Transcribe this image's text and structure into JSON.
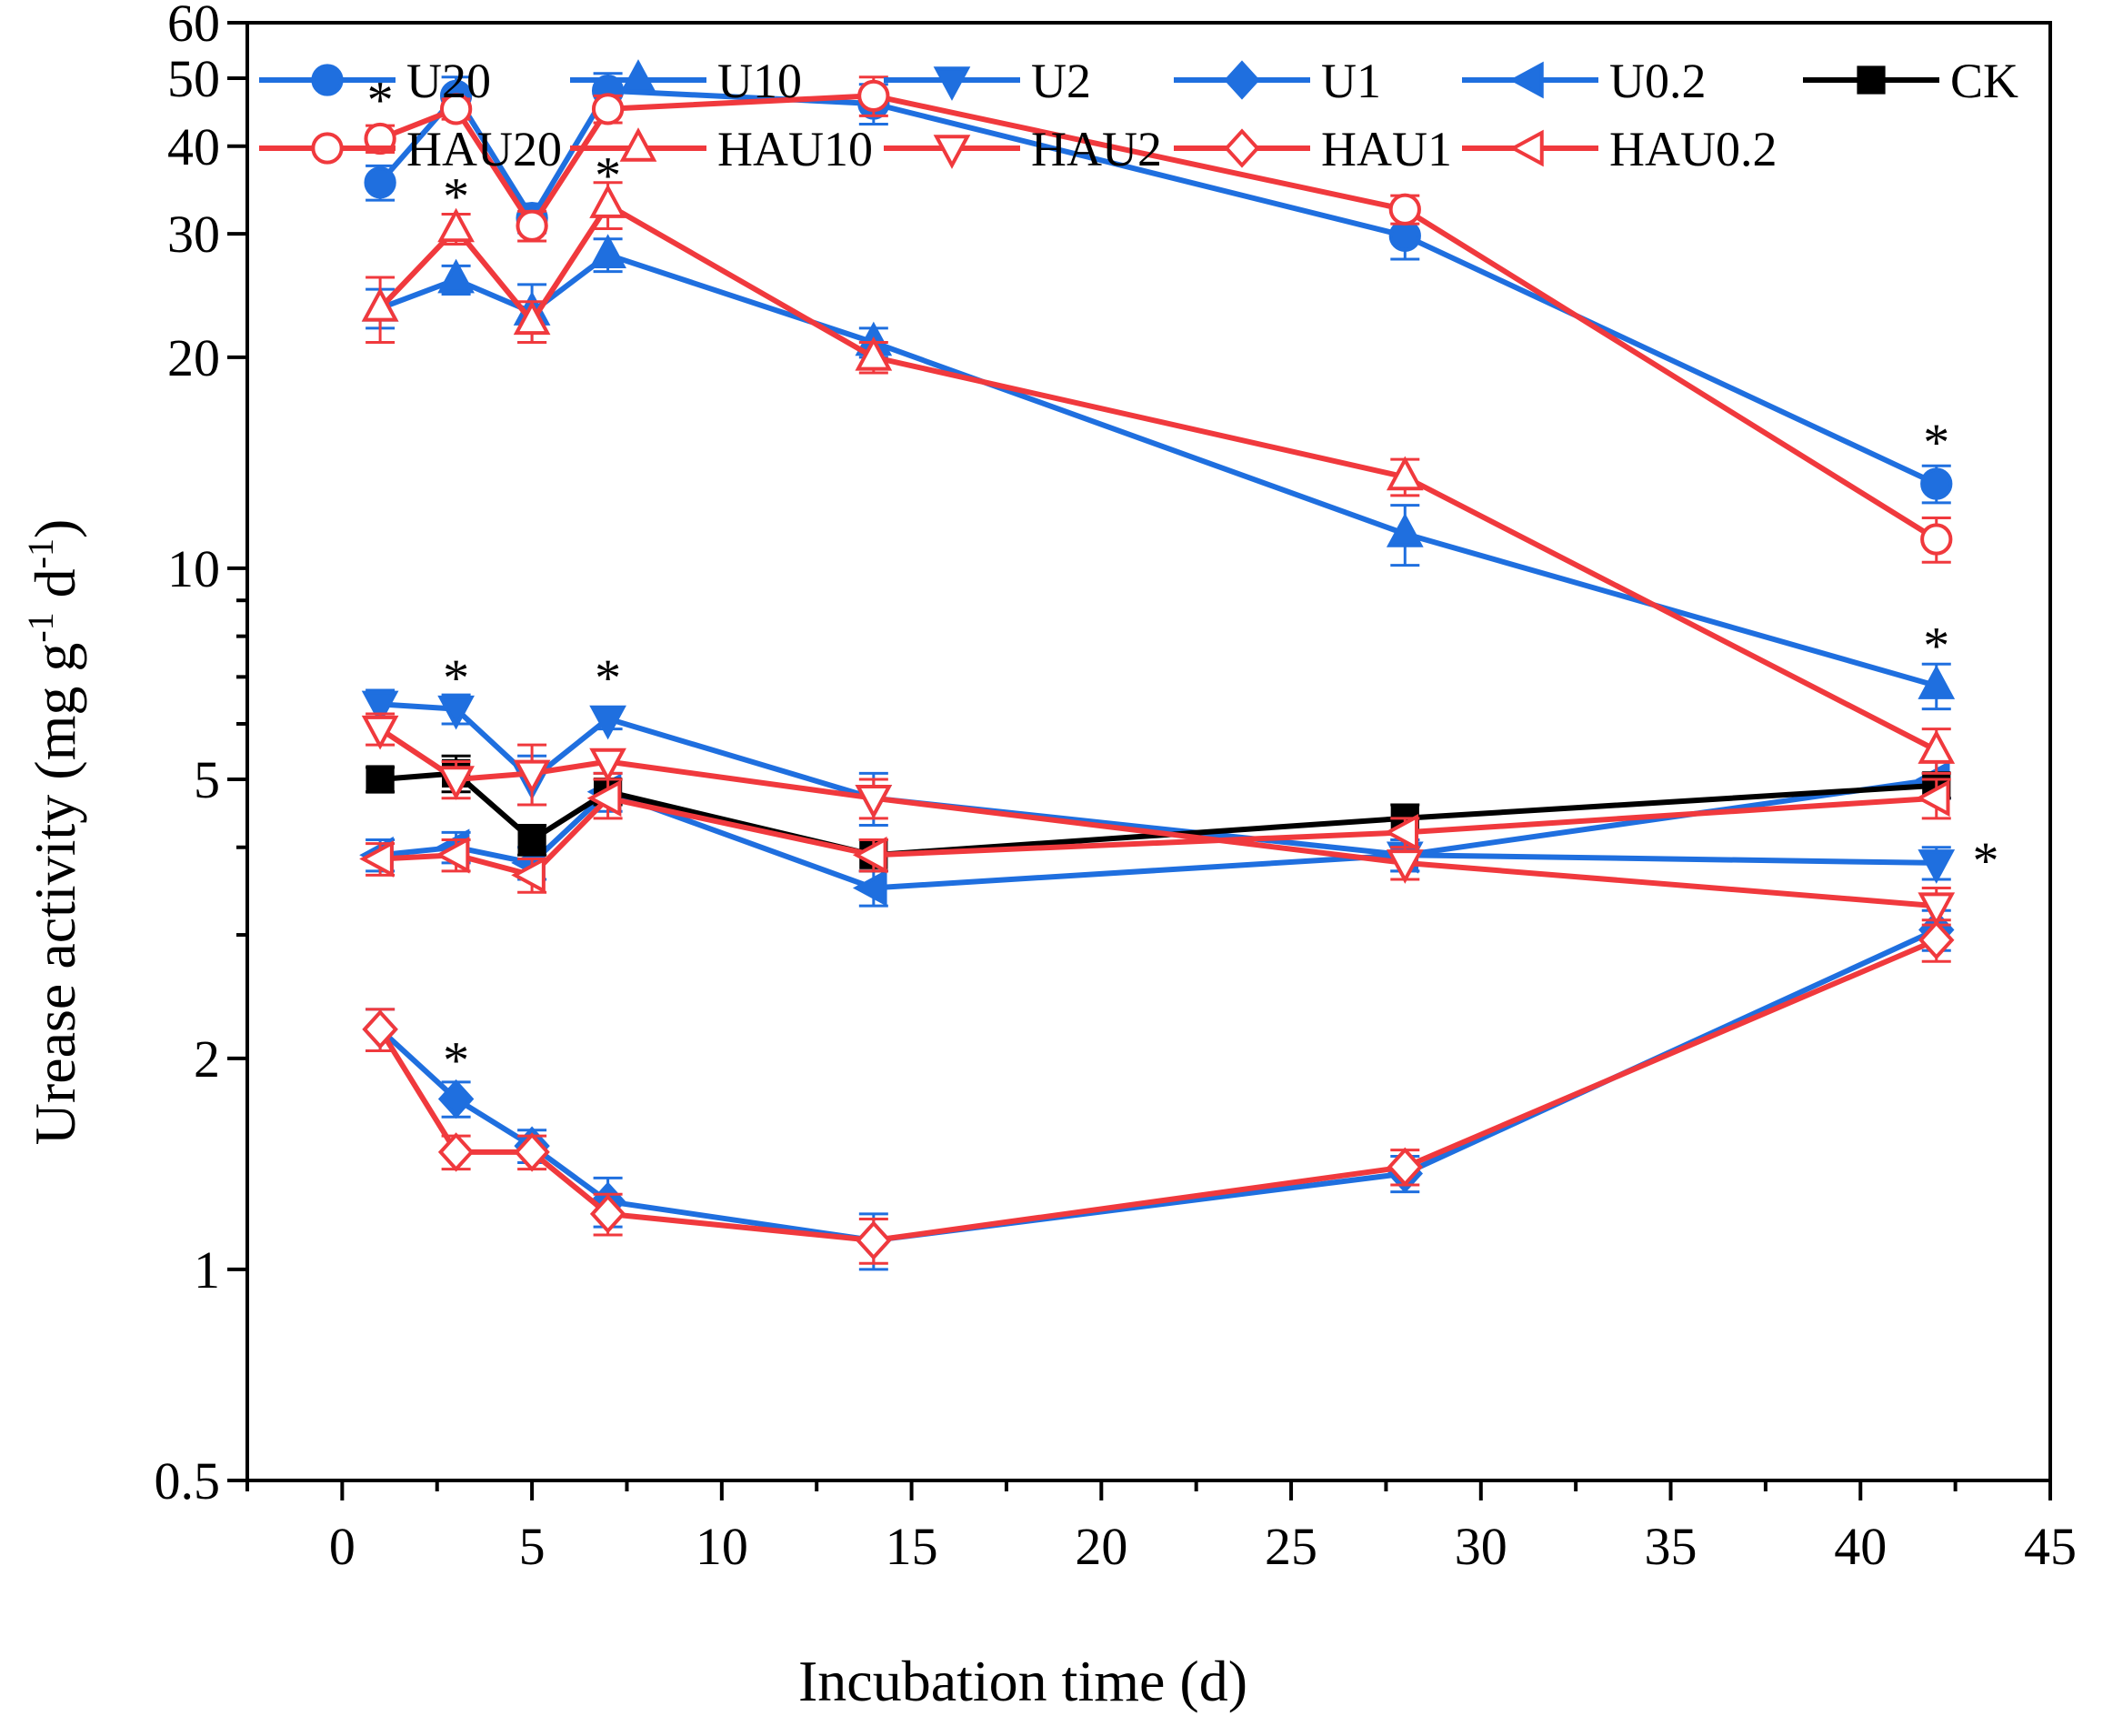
{
  "chart_data": {
    "type": "line",
    "xlabel": "Incubation time (d)",
    "ylabel": {
      "main": "Urease activity (mg g",
      "sup1": "-1",
      "mid": " d",
      "sup2": "-1",
      "end": ")"
    },
    "xlim": [
      -2.5,
      45
    ],
    "xticks": [
      0,
      5,
      10,
      15,
      20,
      25,
      30,
      35,
      40,
      45
    ],
    "xtick_labels": [
      "0",
      "5",
      "10",
      "15",
      "20",
      "25",
      "30",
      "35",
      "40",
      "45"
    ],
    "y_scale": "log",
    "ylim": [
      0.5,
      60
    ],
    "yticks": [
      0.5,
      1,
      2,
      5,
      10,
      20,
      30,
      40,
      50,
      60
    ],
    "ytick_labels": [
      "0.5",
      "1",
      "2",
      "5",
      "10",
      "20",
      "30",
      "40",
      "50",
      "60"
    ],
    "grid": false,
    "legend_position": "top",
    "colors": {
      "U": "#1f6fdf",
      "HAU": "#f0393d",
      "CK": "#000000"
    },
    "x": [
      1,
      3,
      5,
      7,
      14,
      28,
      42
    ],
    "series": [
      {
        "name": "U20",
        "color": "#1f6fdf",
        "marker": "circle",
        "filled": true,
        "values": [
          35.5,
          47.2,
          31.6,
          48.0,
          46.0,
          29.8,
          13.2
        ],
        "errors": [
          2.0,
          3.0,
          1.5,
          2.8,
          3.0,
          2.2,
          0.8
        ]
      },
      {
        "name": "U10",
        "color": "#1f6fdf",
        "marker": "triangle-up",
        "filled": true,
        "values": [
          23.5,
          25.8,
          23.2,
          28.0,
          21.0,
          11.2,
          6.8
        ],
        "errors": [
          1.5,
          1.2,
          2.2,
          1.5,
          1.0,
          1.1,
          0.5
        ]
      },
      {
        "name": "U2",
        "color": "#1f6fdf",
        "marker": "triangle-down",
        "filled": true,
        "values": [
          6.4,
          6.3,
          5.0,
          6.1,
          4.7,
          3.9,
          3.8
        ],
        "errors": [
          0.3,
          0.3,
          0.4,
          0.2,
          0.4,
          0.2,
          0.2
        ]
      },
      {
        "name": "U1",
        "color": "#1f6fdf",
        "marker": "diamond",
        "filled": true,
        "values": [
          2.2,
          1.75,
          1.5,
          1.25,
          1.1,
          1.37,
          3.05
        ],
        "errors": [
          0.15,
          0.1,
          0.08,
          0.1,
          0.1,
          0.08,
          0.2
        ]
      },
      {
        "name": "U0.2",
        "color": "#1f6fdf",
        "marker": "triangle-left",
        "filled": true,
        "values": [
          3.9,
          4.0,
          3.8,
          4.8,
          3.5,
          3.9,
          5.0
        ],
        "errors": [
          0.2,
          0.2,
          0.2,
          0.3,
          0.2,
          0.2,
          0.3
        ]
      },
      {
        "name": "CK",
        "color": "#000000",
        "marker": "square",
        "filled": true,
        "values": [
          5.0,
          5.1,
          4.1,
          4.8,
          3.9,
          4.4,
          4.9
        ],
        "errors": [
          0.2,
          0.3,
          0.2,
          0.2,
          0.2,
          0.2,
          0.2
        ]
      },
      {
        "name": "HAU20",
        "color": "#f0393d",
        "marker": "circle",
        "filled": false,
        "values": [
          41.0,
          45.2,
          30.8,
          45.2,
          47.2,
          32.5,
          11.0
        ],
        "errors": [
          1.8,
          1.5,
          1.5,
          2.0,
          3.0,
          1.5,
          0.8
        ]
      },
      {
        "name": "HAU10",
        "color": "#f0393d",
        "marker": "triangle-up",
        "filled": false,
        "values": [
          23.5,
          30.5,
          22.5,
          33.0,
          20.0,
          13.5,
          5.5
        ],
        "errors": [
          2.5,
          1.5,
          1.5,
          2.5,
          1.0,
          0.8,
          0.4
        ]
      },
      {
        "name": "HAU2",
        "color": "#f0393d",
        "marker": "triangle-down",
        "filled": false,
        "values": [
          5.9,
          5.0,
          5.1,
          5.3,
          4.7,
          3.8,
          3.3
        ],
        "errors": [
          0.3,
          0.3,
          0.5,
          0.2,
          0.3,
          0.2,
          0.2
        ]
      },
      {
        "name": "HAU1",
        "color": "#f0393d",
        "marker": "diamond",
        "filled": false,
        "values": [
          2.2,
          1.47,
          1.47,
          1.2,
          1.1,
          1.4,
          2.95
        ],
        "errors": [
          0.15,
          0.08,
          0.08,
          0.08,
          0.08,
          0.08,
          0.2
        ]
      },
      {
        "name": "HAU0.2",
        "color": "#f0393d",
        "marker": "triangle-left",
        "filled": false,
        "values": [
          3.85,
          3.9,
          3.65,
          4.7,
          3.9,
          4.2,
          4.7
        ],
        "errors": [
          0.2,
          0.2,
          0.2,
          0.3,
          0.2,
          0.2,
          0.3
        ]
      }
    ],
    "legend_rows": [
      [
        "U20",
        "U10",
        "U2",
        "U1",
        "U0.2",
        "CK"
      ],
      [
        "HAU20",
        "HAU10",
        "HAU2",
        "HAU1",
        "HAU0.2"
      ]
    ],
    "annotations": [
      {
        "text": "*",
        "x": 1,
        "y": 48
      },
      {
        "text": "*",
        "x": 3,
        "y": 35
      },
      {
        "text": "*",
        "x": 7,
        "y": 37.5
      },
      {
        "text": "*",
        "x": 3,
        "y": 7.2
      },
      {
        "text": "*",
        "x": 7,
        "y": 7.2
      },
      {
        "text": "*",
        "x": 3,
        "y": 2.05
      },
      {
        "text": "*",
        "x": 42,
        "y": 15.6
      },
      {
        "text": "*",
        "x": 42,
        "y": 8.0
      },
      {
        "text": "*",
        "x": 43.3,
        "y": 3.95
      }
    ]
  }
}
